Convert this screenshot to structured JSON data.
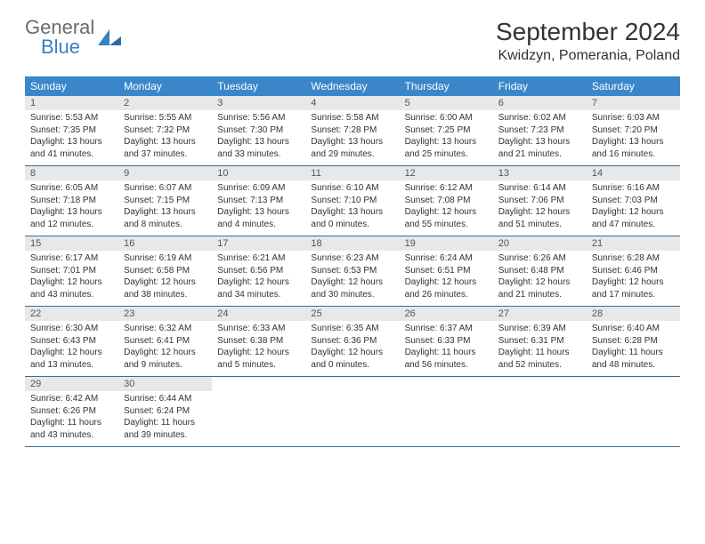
{
  "logo": {
    "general": "General",
    "blue": "Blue"
  },
  "title": "September 2024",
  "location": "Kwidzyn, Pomerania, Poland",
  "colors": {
    "header_bg": "#3a86c9",
    "header_text": "#ffffff",
    "daynum_bg": "#e8e8e8",
    "border": "#3a6a9a",
    "logo_blue": "#3a7fc4",
    "logo_gray": "#6b6b6b"
  },
  "weekdays": [
    "Sunday",
    "Monday",
    "Tuesday",
    "Wednesday",
    "Thursday",
    "Friday",
    "Saturday"
  ],
  "weeks": [
    [
      {
        "n": "1",
        "sr": "Sunrise: 5:53 AM",
        "ss": "Sunset: 7:35 PM",
        "dl": "Daylight: 13 hours and 41 minutes."
      },
      {
        "n": "2",
        "sr": "Sunrise: 5:55 AM",
        "ss": "Sunset: 7:32 PM",
        "dl": "Daylight: 13 hours and 37 minutes."
      },
      {
        "n": "3",
        "sr": "Sunrise: 5:56 AM",
        "ss": "Sunset: 7:30 PM",
        "dl": "Daylight: 13 hours and 33 minutes."
      },
      {
        "n": "4",
        "sr": "Sunrise: 5:58 AM",
        "ss": "Sunset: 7:28 PM",
        "dl": "Daylight: 13 hours and 29 minutes."
      },
      {
        "n": "5",
        "sr": "Sunrise: 6:00 AM",
        "ss": "Sunset: 7:25 PM",
        "dl": "Daylight: 13 hours and 25 minutes."
      },
      {
        "n": "6",
        "sr": "Sunrise: 6:02 AM",
        "ss": "Sunset: 7:23 PM",
        "dl": "Daylight: 13 hours and 21 minutes."
      },
      {
        "n": "7",
        "sr": "Sunrise: 6:03 AM",
        "ss": "Sunset: 7:20 PM",
        "dl": "Daylight: 13 hours and 16 minutes."
      }
    ],
    [
      {
        "n": "8",
        "sr": "Sunrise: 6:05 AM",
        "ss": "Sunset: 7:18 PM",
        "dl": "Daylight: 13 hours and 12 minutes."
      },
      {
        "n": "9",
        "sr": "Sunrise: 6:07 AM",
        "ss": "Sunset: 7:15 PM",
        "dl": "Daylight: 13 hours and 8 minutes."
      },
      {
        "n": "10",
        "sr": "Sunrise: 6:09 AM",
        "ss": "Sunset: 7:13 PM",
        "dl": "Daylight: 13 hours and 4 minutes."
      },
      {
        "n": "11",
        "sr": "Sunrise: 6:10 AM",
        "ss": "Sunset: 7:10 PM",
        "dl": "Daylight: 13 hours and 0 minutes."
      },
      {
        "n": "12",
        "sr": "Sunrise: 6:12 AM",
        "ss": "Sunset: 7:08 PM",
        "dl": "Daylight: 12 hours and 55 minutes."
      },
      {
        "n": "13",
        "sr": "Sunrise: 6:14 AM",
        "ss": "Sunset: 7:06 PM",
        "dl": "Daylight: 12 hours and 51 minutes."
      },
      {
        "n": "14",
        "sr": "Sunrise: 6:16 AM",
        "ss": "Sunset: 7:03 PM",
        "dl": "Daylight: 12 hours and 47 minutes."
      }
    ],
    [
      {
        "n": "15",
        "sr": "Sunrise: 6:17 AM",
        "ss": "Sunset: 7:01 PM",
        "dl": "Daylight: 12 hours and 43 minutes."
      },
      {
        "n": "16",
        "sr": "Sunrise: 6:19 AM",
        "ss": "Sunset: 6:58 PM",
        "dl": "Daylight: 12 hours and 38 minutes."
      },
      {
        "n": "17",
        "sr": "Sunrise: 6:21 AM",
        "ss": "Sunset: 6:56 PM",
        "dl": "Daylight: 12 hours and 34 minutes."
      },
      {
        "n": "18",
        "sr": "Sunrise: 6:23 AM",
        "ss": "Sunset: 6:53 PM",
        "dl": "Daylight: 12 hours and 30 minutes."
      },
      {
        "n": "19",
        "sr": "Sunrise: 6:24 AM",
        "ss": "Sunset: 6:51 PM",
        "dl": "Daylight: 12 hours and 26 minutes."
      },
      {
        "n": "20",
        "sr": "Sunrise: 6:26 AM",
        "ss": "Sunset: 6:48 PM",
        "dl": "Daylight: 12 hours and 21 minutes."
      },
      {
        "n": "21",
        "sr": "Sunrise: 6:28 AM",
        "ss": "Sunset: 6:46 PM",
        "dl": "Daylight: 12 hours and 17 minutes."
      }
    ],
    [
      {
        "n": "22",
        "sr": "Sunrise: 6:30 AM",
        "ss": "Sunset: 6:43 PM",
        "dl": "Daylight: 12 hours and 13 minutes."
      },
      {
        "n": "23",
        "sr": "Sunrise: 6:32 AM",
        "ss": "Sunset: 6:41 PM",
        "dl": "Daylight: 12 hours and 9 minutes."
      },
      {
        "n": "24",
        "sr": "Sunrise: 6:33 AM",
        "ss": "Sunset: 6:38 PM",
        "dl": "Daylight: 12 hours and 5 minutes."
      },
      {
        "n": "25",
        "sr": "Sunrise: 6:35 AM",
        "ss": "Sunset: 6:36 PM",
        "dl": "Daylight: 12 hours and 0 minutes."
      },
      {
        "n": "26",
        "sr": "Sunrise: 6:37 AM",
        "ss": "Sunset: 6:33 PM",
        "dl": "Daylight: 11 hours and 56 minutes."
      },
      {
        "n": "27",
        "sr": "Sunrise: 6:39 AM",
        "ss": "Sunset: 6:31 PM",
        "dl": "Daylight: 11 hours and 52 minutes."
      },
      {
        "n": "28",
        "sr": "Sunrise: 6:40 AM",
        "ss": "Sunset: 6:28 PM",
        "dl": "Daylight: 11 hours and 48 minutes."
      }
    ],
    [
      {
        "n": "29",
        "sr": "Sunrise: 6:42 AM",
        "ss": "Sunset: 6:26 PM",
        "dl": "Daylight: 11 hours and 43 minutes."
      },
      {
        "n": "30",
        "sr": "Sunrise: 6:44 AM",
        "ss": "Sunset: 6:24 PM",
        "dl": "Daylight: 11 hours and 39 minutes."
      },
      null,
      null,
      null,
      null,
      null
    ]
  ]
}
